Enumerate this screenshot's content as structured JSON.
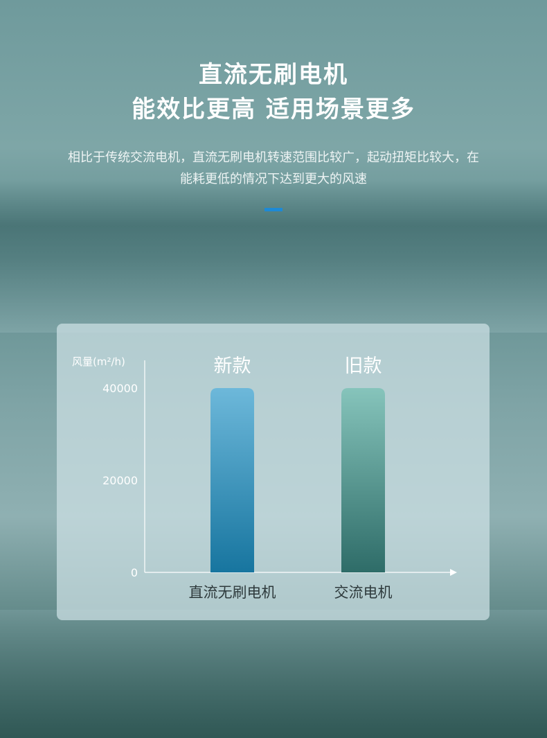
{
  "header": {
    "title_line1": "直流无刷电机",
    "title_line2": "能效比更高 适用场景更多",
    "description": "相比于传统交流电机，直流无刷电机转速范围比较广，起动扭矩比较大，在能耗更低的情况下达到更大的风速",
    "accent_color": "#1d8ad6"
  },
  "chart_data": {
    "type": "bar",
    "ylabel": "风量(m²/h)",
    "categories": [
      "直流无刷电机",
      "交流电机"
    ],
    "bar_labels": [
      "新款",
      "旧款"
    ],
    "values": [
      40000,
      40000
    ],
    "ylim": [
      0,
      40000
    ],
    "yticks": [
      "0",
      "20000",
      "40000"
    ],
    "grid": false,
    "colors": [
      [
        "#6db8da",
        "#17759f"
      ],
      [
        "#86c4bb",
        "#2e6c68"
      ]
    ]
  }
}
